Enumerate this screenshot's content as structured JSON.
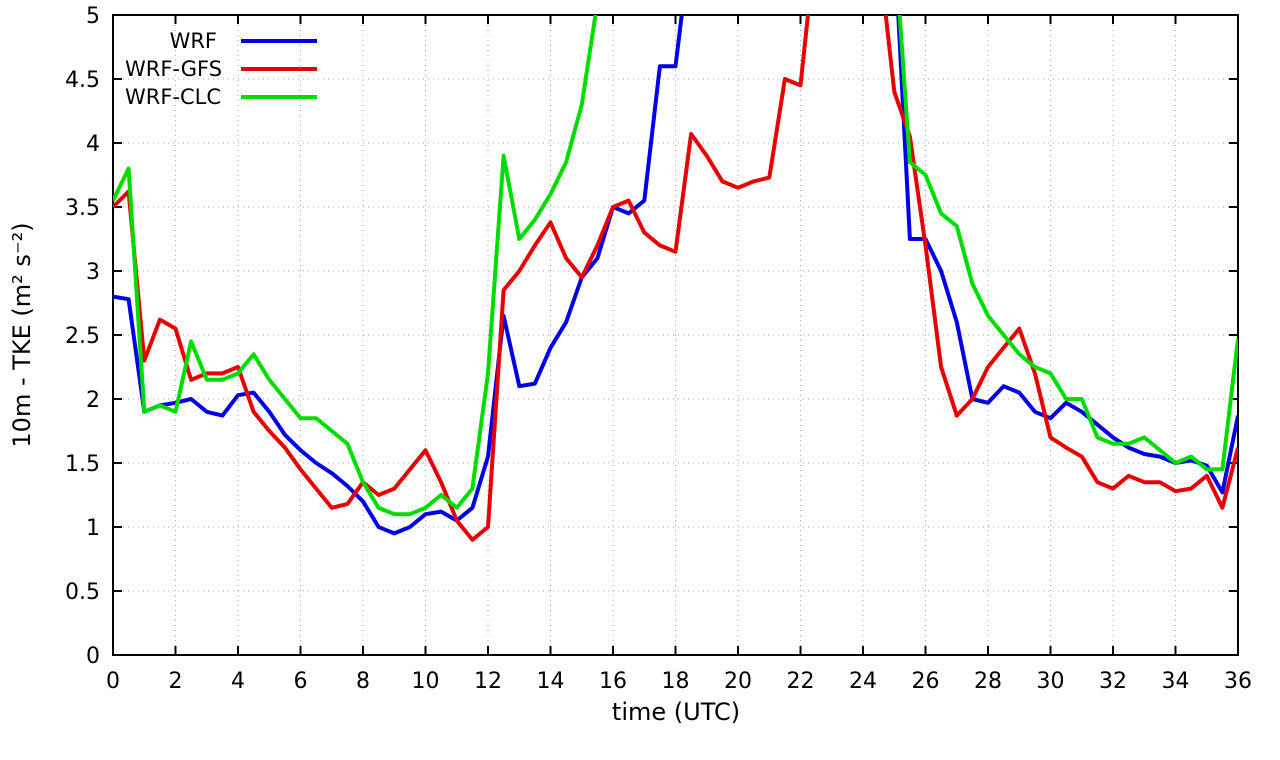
{
  "chart_data": {
    "type": "line",
    "title": "",
    "xlabel": "time (UTC)",
    "ylabel": "10m - TKE (m² s⁻²)",
    "xlim": [
      0,
      36
    ],
    "ylim": [
      0,
      5
    ],
    "xticks": [
      "0",
      "2",
      "4",
      "6",
      "8",
      "10",
      "12",
      "14",
      "16",
      "18",
      "20",
      "22",
      "24",
      "26",
      "28",
      "30",
      "32",
      "34",
      "36"
    ],
    "yticks": [
      "0",
      "0.5",
      "1",
      "1.5",
      "2",
      "2.5",
      "3",
      "3.5",
      "4",
      "4.5",
      "5"
    ],
    "grid": true,
    "legend_position": "top-left",
    "x": [
      0,
      0.5,
      1,
      1.5,
      2,
      2.5,
      3,
      3.5,
      4,
      4.5,
      5,
      5.5,
      6,
      6.5,
      7,
      7.5,
      8,
      8.5,
      9,
      9.5,
      10,
      10.5,
      11,
      11.5,
      12,
      12.5,
      13,
      13.5,
      14,
      14.5,
      15,
      15.5,
      16,
      16.5,
      17,
      17.5,
      18,
      18.5,
      19,
      19.5,
      20,
      20.5,
      21,
      21.5,
      22,
      22.5,
      23,
      23.5,
      24,
      24.5,
      25,
      25.5,
      26,
      26.5,
      27,
      27.5,
      28,
      28.5,
      29,
      29.5,
      30,
      30.5,
      31,
      31.5,
      32,
      32.5,
      33,
      33.5,
      34,
      34.5,
      35,
      35.5,
      36
    ],
    "series": [
      {
        "name": "WRF",
        "color": "#0000e8",
        "values": [
          2.8,
          2.78,
          1.9,
          1.95,
          1.97,
          2.0,
          1.9,
          1.87,
          2.03,
          2.05,
          1.9,
          1.72,
          1.6,
          1.5,
          1.42,
          1.32,
          1.2,
          1.0,
          0.95,
          1.0,
          1.1,
          1.12,
          1.05,
          1.15,
          1.55,
          2.65,
          2.1,
          2.12,
          2.4,
          2.6,
          2.95,
          3.1,
          3.5,
          3.45,
          3.55,
          4.6,
          4.6,
          5.6,
          null,
          null,
          null,
          null,
          null,
          null,
          null,
          null,
          null,
          null,
          null,
          null,
          5.6,
          3.25,
          3.25,
          3.0,
          2.6,
          2.0,
          1.97,
          2.1,
          2.05,
          1.9,
          1.85,
          1.97,
          1.9,
          1.8,
          1.7,
          1.62,
          1.57,
          1.55,
          1.5,
          1.52,
          1.48,
          1.27,
          1.87
        ]
      },
      {
        "name": "WRF-GFS",
        "color": "#e80000",
        "values": [
          3.5,
          3.62,
          2.3,
          2.62,
          2.55,
          2.15,
          2.2,
          2.2,
          2.25,
          1.9,
          1.75,
          1.62,
          1.45,
          1.3,
          1.15,
          1.18,
          1.35,
          1.25,
          1.3,
          1.45,
          1.6,
          1.35,
          1.05,
          0.9,
          1.0,
          2.85,
          3.0,
          3.2,
          3.38,
          3.1,
          2.95,
          3.2,
          3.5,
          3.55,
          3.3,
          3.2,
          3.15,
          4.07,
          3.9,
          3.7,
          3.65,
          3.7,
          3.73,
          4.5,
          4.45,
          5.6,
          null,
          null,
          null,
          5.5,
          4.4,
          4.05,
          3.2,
          2.25,
          1.87,
          2.0,
          2.25,
          2.4,
          2.55,
          2.2,
          1.7,
          1.62,
          1.55,
          1.35,
          1.3,
          1.4,
          1.35,
          1.35,
          1.28,
          1.3,
          1.4,
          1.15,
          1.62
        ]
      },
      {
        "name": "WRF-CLC",
        "color": "#00dc00",
        "values": [
          3.55,
          3.8,
          1.9,
          1.95,
          1.9,
          2.45,
          2.15,
          2.15,
          2.2,
          2.35,
          2.15,
          2.0,
          1.85,
          1.85,
          1.75,
          1.65,
          1.35,
          1.15,
          1.1,
          1.1,
          1.15,
          1.25,
          1.15,
          1.3,
          2.2,
          3.9,
          3.25,
          3.4,
          3.6,
          3.85,
          4.3,
          5.1,
          null,
          null,
          null,
          null,
          null,
          null,
          null,
          null,
          null,
          null,
          null,
          null,
          null,
          null,
          null,
          null,
          null,
          null,
          5.6,
          3.85,
          3.75,
          3.45,
          3.35,
          2.9,
          2.65,
          2.5,
          2.35,
          2.25,
          2.2,
          2.0,
          2.0,
          1.7,
          1.65,
          1.65,
          1.7,
          1.6,
          1.5,
          1.55,
          1.45,
          1.45,
          2.47
        ]
      }
    ]
  }
}
